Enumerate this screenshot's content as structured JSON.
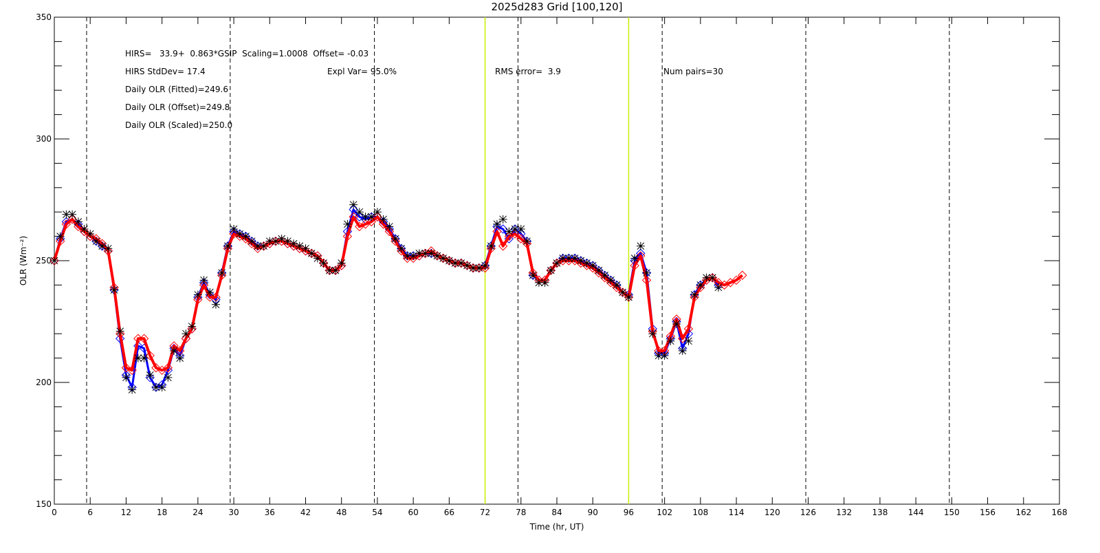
{
  "chart_data": {
    "type": "line",
    "title": "2025d283 Grid [100,120]",
    "xlabel": "Time (hr, UT)",
    "ylabel": "OLR (Wm⁻²)",
    "annotations": [
      "HIRS=   33.9+  0.863*GSIP  Scaling=1.0008  Offset= -0.03",
      "HIRS StdDev= 17.4",
      "Expl Var= 95.0%",
      "RMS error=  3.9",
      "Num pairs=30",
      "Daily OLR (Fitted)=249.6",
      "Daily OLR (Offset)=249.8",
      "Daily OLR (Scaled)=250.0"
    ],
    "xlim": [
      0,
      168
    ],
    "ylim": [
      150,
      350
    ],
    "xticks": [
      0,
      6,
      12,
      18,
      24,
      30,
      36,
      42,
      48,
      54,
      60,
      66,
      72,
      78,
      84,
      90,
      96,
      102,
      108,
      114,
      120,
      126,
      132,
      138,
      144,
      150,
      156,
      162,
      168
    ],
    "yticks": [
      150,
      200,
      250,
      300,
      350
    ],
    "y_minor_ticks": [
      160,
      170,
      180,
      190,
      210,
      220,
      230,
      240,
      260,
      270,
      280,
      290,
      310,
      320,
      330,
      340
    ],
    "dashed_lines": {
      "color": "#000000",
      "x": [
        5.4,
        29.4,
        53.5,
        77.5,
        101.6,
        125.6,
        149.6
      ]
    },
    "solid_lines": {
      "color": "#c8f000",
      "x": [
        72,
        96
      ]
    },
    "x": [
      0,
      1,
      2,
      3,
      4,
      5,
      6,
      7,
      8,
      9,
      10,
      11,
      12,
      13,
      14,
      15,
      16,
      17,
      18,
      19,
      20,
      21,
      22,
      23,
      24,
      25,
      26,
      27,
      28,
      29,
      30,
      31,
      32,
      33,
      34,
      35,
      36,
      37,
      38,
      39,
      40,
      41,
      42,
      43,
      44,
      45,
      46,
      47,
      48,
      49,
      50,
      51,
      52,
      53,
      54,
      55,
      56,
      57,
      58,
      59,
      60,
      61,
      62,
      63,
      64,
      65,
      66,
      67,
      68,
      69,
      70,
      71,
      72,
      73,
      74,
      75,
      76,
      77,
      78,
      79,
      80,
      81,
      82,
      83,
      84,
      85,
      86,
      87,
      88,
      89,
      90,
      91,
      92,
      93,
      94,
      95,
      96,
      97,
      98,
      99,
      100,
      101,
      102,
      103,
      104,
      105,
      106,
      107,
      108,
      109,
      110,
      111,
      112,
      113,
      114,
      115
    ],
    "series": [
      {
        "color": "#0000ff",
        "marker": "diamond",
        "width": 3,
        "values": [
          250,
          259,
          266,
          267,
          265,
          262,
          260,
          258,
          256,
          254,
          238,
          218,
          203,
          198,
          215,
          214,
          202,
          198,
          199,
          205,
          214,
          211,
          218,
          222,
          235,
          241,
          236,
          234,
          245,
          256,
          262,
          261,
          260,
          258,
          256,
          256,
          257,
          258,
          258,
          257,
          256,
          255,
          254,
          253,
          252,
          249,
          246,
          246,
          248,
          262,
          271,
          268,
          267,
          268,
          268,
          266,
          263,
          259,
          255,
          252,
          252,
          252,
          253,
          253,
          252,
          251,
          250,
          249,
          249,
          248,
          247,
          247,
          248,
          256,
          264,
          263,
          259,
          263,
          261,
          258,
          244,
          242,
          242,
          246,
          249,
          251,
          251,
          251,
          250,
          249,
          248,
          246,
          244,
          242,
          240,
          237,
          236,
          250,
          253,
          245,
          222,
          212,
          212,
          218,
          225,
          214,
          220,
          236,
          240,
          242,
          243,
          240,
          null,
          null,
          null,
          null
        ]
      },
      {
        "color": "#ff0000",
        "marker": "diamond",
        "width": 4,
        "values": [
          250,
          258,
          265,
          267,
          264,
          262,
          260,
          259,
          257,
          254,
          239,
          220,
          206,
          205,
          218,
          218,
          211,
          206,
          205,
          206,
          215,
          213,
          218,
          222,
          234,
          240,
          235,
          235,
          244,
          255,
          261,
          260,
          259,
          257,
          255,
          256,
          257,
          258,
          258,
          257,
          256,
          255,
          254,
          253,
          252,
          249,
          246,
          246,
          248,
          260,
          268,
          264,
          265,
          266,
          268,
          265,
          262,
          258,
          254,
          251,
          251,
          252,
          253,
          254,
          252,
          251,
          250,
          249,
          249,
          248,
          247,
          247,
          247,
          255,
          262,
          256,
          260,
          261,
          259,
          257,
          245,
          242,
          242,
          246,
          249,
          250,
          250,
          250,
          249,
          248,
          247,
          245,
          243,
          241,
          239,
          237,
          235,
          248,
          252,
          242,
          221,
          213,
          213,
          219,
          226,
          218,
          222,
          235,
          239,
          242,
          243,
          241,
          240,
          241,
          242,
          244
        ]
      },
      {
        "color": "#000000",
        "marker": "star",
        "width": 0,
        "values": [
          250,
          260,
          269,
          269,
          266,
          263,
          261,
          258,
          256,
          255,
          238,
          221,
          202,
          197,
          210,
          210,
          203,
          198,
          198,
          202,
          213,
          210,
          220,
          223,
          236,
          242,
          237,
          232,
          245,
          256,
          263,
          261,
          260,
          258,
          256,
          256,
          258,
          258,
          259,
          258,
          257,
          256,
          255,
          253,
          251,
          249,
          246,
          246,
          249,
          265,
          273,
          270,
          268,
          268,
          270,
          267,
          264,
          259,
          255,
          252,
          252,
          253,
          253,
          253,
          252,
          251,
          250,
          249,
          249,
          248,
          247,
          247,
          248,
          256,
          265,
          267,
          262,
          263,
          263,
          258,
          244,
          241,
          241,
          246,
          249,
          251,
          251,
          251,
          250,
          249,
          248,
          246,
          244,
          242,
          240,
          237,
          235,
          251,
          256,
          245,
          220,
          211,
          211,
          217,
          224,
          213,
          217,
          236,
          240,
          243,
          243,
          239,
          null,
          null,
          null,
          null
        ]
      }
    ]
  }
}
